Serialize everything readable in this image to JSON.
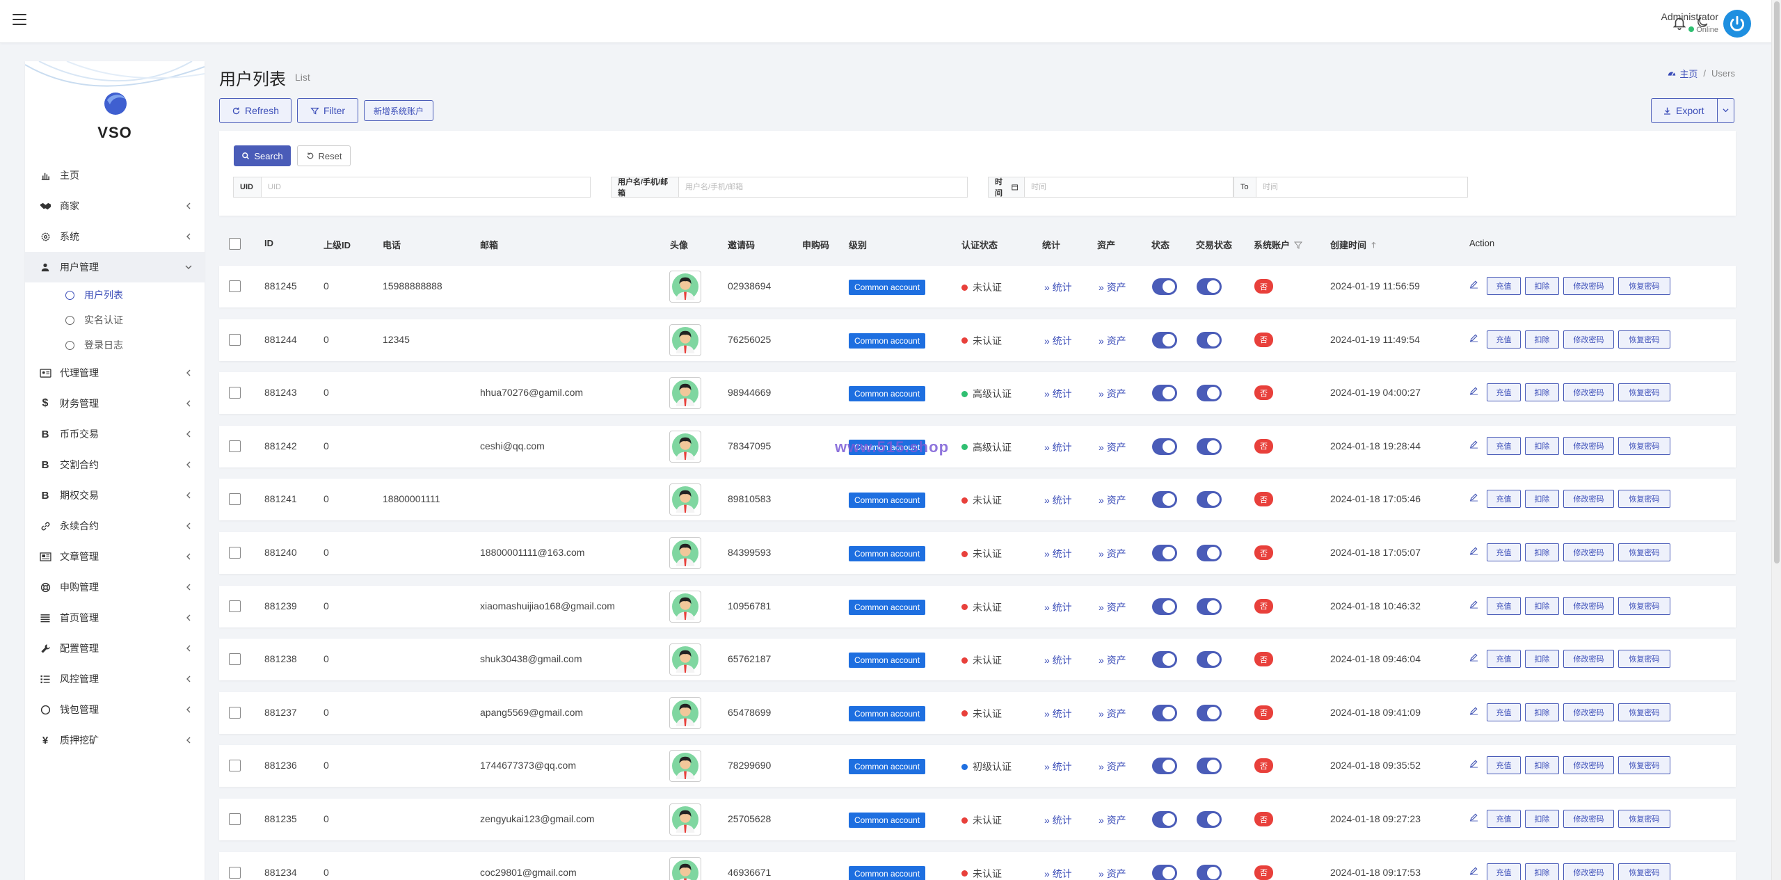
{
  "header": {
    "admin_name": "Administrator",
    "admin_status": "Online"
  },
  "brand": {
    "name": "VSO"
  },
  "sidebar": {
    "items": [
      {
        "label": "主页",
        "icon": "bar-chart-icon",
        "has_children": false
      },
      {
        "label": "商家",
        "icon": "handshake-icon",
        "has_children": true
      },
      {
        "label": "系统",
        "icon": "gear-icon",
        "has_children": true
      },
      {
        "label": "用户管理",
        "icon": "user-icon",
        "has_children": true,
        "expanded": true
      },
      {
        "label": "代理管理",
        "icon": "id-card-icon",
        "has_children": true
      },
      {
        "label": "财务管理",
        "icon": "dollar-icon",
        "has_children": true
      },
      {
        "label": "币币交易",
        "icon": "bitcoin-icon",
        "has_children": true
      },
      {
        "label": "交割合约",
        "icon": "bitcoin-icon",
        "has_children": true
      },
      {
        "label": "期权交易",
        "icon": "bitcoin-icon",
        "has_children": true
      },
      {
        "label": "永续合约",
        "icon": "link-icon",
        "has_children": true
      },
      {
        "label": "文章管理",
        "icon": "newspaper-icon",
        "has_children": true
      },
      {
        "label": "申购管理",
        "icon": "lifebuoy-icon",
        "has_children": true
      },
      {
        "label": "首页管理",
        "icon": "list-icon",
        "has_children": true
      },
      {
        "label": "配置管理",
        "icon": "wrench-icon",
        "has_children": true
      },
      {
        "label": "风控管理",
        "icon": "list-check-icon",
        "has_children": true
      },
      {
        "label": "钱包管理",
        "icon": "circle-icon",
        "has_children": true
      },
      {
        "label": "质押挖矿",
        "icon": "yen-icon",
        "has_children": true
      }
    ],
    "submenu": [
      {
        "label": "用户列表",
        "active": true
      },
      {
        "label": "实名认证",
        "active": false
      },
      {
        "label": "登录日志",
        "active": false
      }
    ]
  },
  "page": {
    "title": "用户列表",
    "subtitle": "List",
    "breadcrumb_home": "主页",
    "breadcrumb_current": "Users"
  },
  "toolbar": {
    "refresh": "Refresh",
    "filter": "Filter",
    "new_system_account": "新增系统账户",
    "export": "Export"
  },
  "search": {
    "search_btn": "Search",
    "reset_btn": "Reset",
    "uid_label": "UID",
    "uid_placeholder": "UID",
    "user_label": "用户名/手机/邮箱",
    "user_placeholder": "用户名/手机/邮箱",
    "time_label": "时间",
    "time_from_placeholder": "时间",
    "to_label": "To",
    "time_to_placeholder": "时间"
  },
  "table": {
    "headers": {
      "id": "ID",
      "parent": "上级ID",
      "phone": "电话",
      "email": "邮箱",
      "avatar": "头像",
      "invite": "邀请码",
      "purchase": "申购码",
      "level": "级别",
      "cert": "认证状态",
      "stats": "统计",
      "assets": "资产",
      "status": "状态",
      "trade_status": "交易状态",
      "sys_account": "系统账户",
      "created": "创建时间",
      "action": "Action"
    },
    "link_stats": "统计",
    "link_assets": "资产",
    "action_labels": [
      "充值",
      "扣除",
      "修改密码",
      "恢复密码"
    ],
    "rows": [
      {
        "id": "881245",
        "parent": "0",
        "phone": "15988888888",
        "email": "",
        "invite": "02938694",
        "level": "Common account",
        "cert": "未认证",
        "cert_color": "#e8403b",
        "sys": "否",
        "created": "2024-01-19 11:56:59"
      },
      {
        "id": "881244",
        "parent": "0",
        "phone": "12345",
        "email": "",
        "invite": "76256025",
        "level": "Common account",
        "cert": "未认证",
        "cert_color": "#e8403b",
        "sys": "否",
        "created": "2024-01-19 11:49:54"
      },
      {
        "id": "881243",
        "parent": "0",
        "phone": "",
        "email": "hhua70276@gamil.com",
        "invite": "98944669",
        "level": "Common account",
        "cert": "高级认证",
        "cert_color": "#2fbf71",
        "sys": "否",
        "created": "2024-01-19 04:00:27"
      },
      {
        "id": "881242",
        "parent": "0",
        "phone": "",
        "email": "ceshi@qq.com",
        "invite": "78347095",
        "level": "Common account",
        "cert": "高级认证",
        "cert_color": "#2fbf71",
        "sys": "否",
        "created": "2024-01-18 19:28:44"
      },
      {
        "id": "881241",
        "parent": "0",
        "phone": "18800001111",
        "email": "",
        "invite": "89810583",
        "level": "Common account",
        "cert": "未认证",
        "cert_color": "#e8403b",
        "sys": "否",
        "created": "2024-01-18 17:05:46"
      },
      {
        "id": "881240",
        "parent": "0",
        "phone": "",
        "email": "18800001111@163.com",
        "invite": "84399593",
        "level": "Common account",
        "cert": "未认证",
        "cert_color": "#e8403b",
        "sys": "否",
        "created": "2024-01-18 17:05:07"
      },
      {
        "id": "881239",
        "parent": "0",
        "phone": "",
        "email": "xiaomashuijiao168@gmail.com",
        "invite": "10956781",
        "level": "Common account",
        "cert": "未认证",
        "cert_color": "#e8403b",
        "sys": "否",
        "created": "2024-01-18 10:46:32"
      },
      {
        "id": "881238",
        "parent": "0",
        "phone": "",
        "email": "shuk30438@gmail.com",
        "invite": "65762187",
        "level": "Common account",
        "cert": "未认证",
        "cert_color": "#e8403b",
        "sys": "否",
        "created": "2024-01-18 09:46:04"
      },
      {
        "id": "881237",
        "parent": "0",
        "phone": "",
        "email": "apang5569@gmail.com",
        "invite": "65478699",
        "level": "Common account",
        "cert": "未认证",
        "cert_color": "#e8403b",
        "sys": "否",
        "created": "2024-01-18 09:41:09"
      },
      {
        "id": "881236",
        "parent": "0",
        "phone": "",
        "email": "1744677373@qq.com",
        "invite": "78299690",
        "level": "Common account",
        "cert": "初级认证",
        "cert_color": "#1e6fe0",
        "sys": "否",
        "created": "2024-01-18 09:35:52"
      },
      {
        "id": "881235",
        "parent": "0",
        "phone": "",
        "email": "zengyukai123@gmail.com",
        "invite": "25705628",
        "level": "Common account",
        "cert": "未认证",
        "cert_color": "#e8403b",
        "sys": "否",
        "created": "2024-01-18 09:27:23"
      },
      {
        "id": "881234",
        "parent": "0",
        "phone": "",
        "email": "coc29801@gmail.com",
        "invite": "46936671",
        "level": "Common account",
        "cert": "未认证",
        "cert_color": "#e8403b",
        "sys": "否",
        "created": "2024-01-18 09:17:53"
      }
    ]
  },
  "watermark": "www.515.shop",
  "colors": {
    "accent": "#4a5cb8",
    "level_badge": "#1e6fe0",
    "danger": "#e8403b",
    "success": "#2fbf71"
  }
}
